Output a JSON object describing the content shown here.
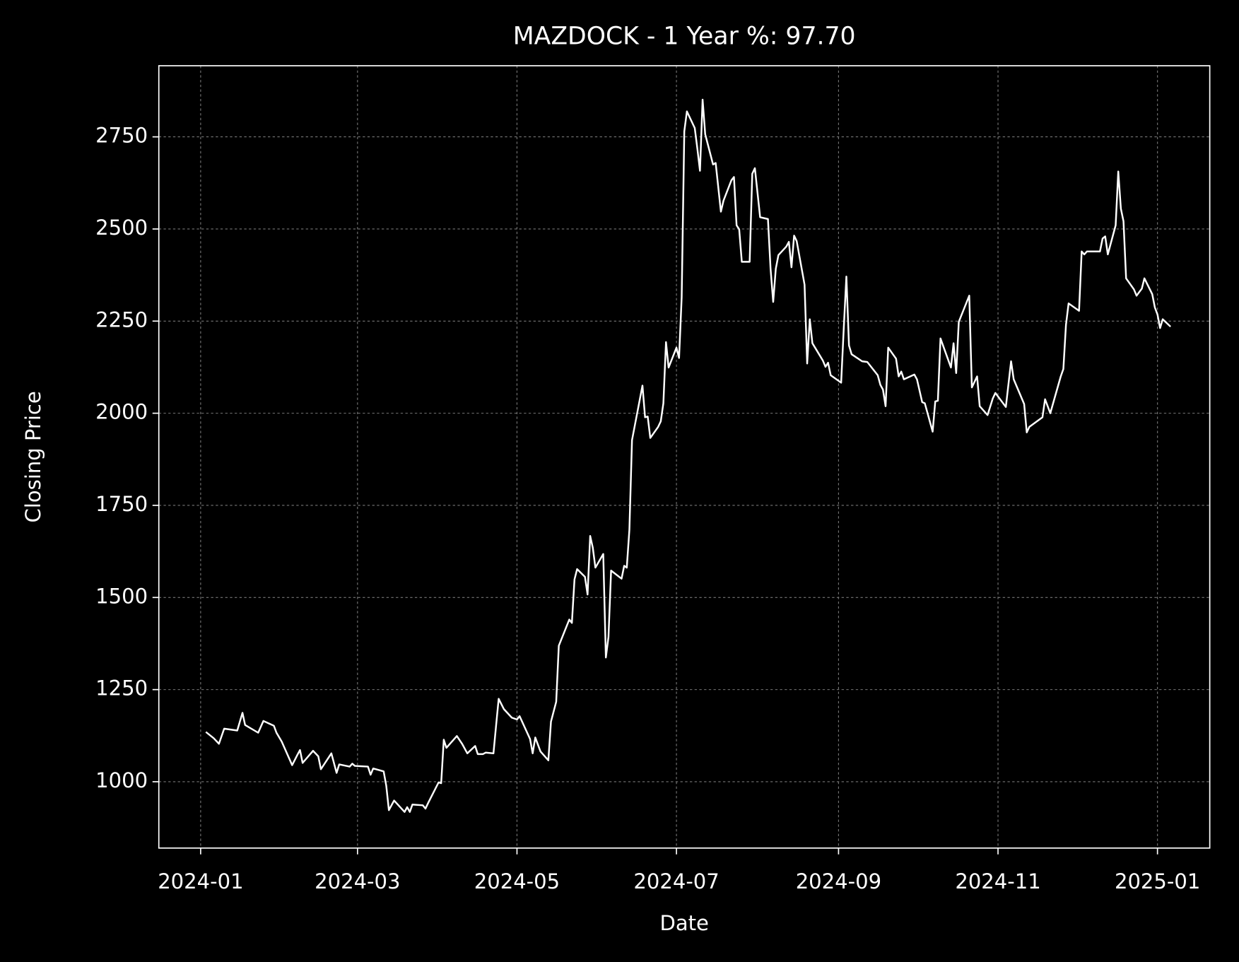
{
  "chart_data": {
    "type": "line",
    "title": "MAZDOCK - 1 Year %: 97.70",
    "xlabel": "Date",
    "ylabel": "Closing Price",
    "color": "#ffffff",
    "grid": true,
    "x": [
      "2024-01-03",
      "2024-01-06",
      "2024-01-08",
      "2024-01-10",
      "2024-01-15",
      "2024-01-17",
      "2024-01-18",
      "2024-01-23",
      "2024-01-25",
      "2024-01-29",
      "2024-01-30",
      "2024-02-01",
      "2024-02-05",
      "2024-02-07",
      "2024-02-08",
      "2024-02-09",
      "2024-02-13",
      "2024-02-15",
      "2024-02-16",
      "2024-02-20",
      "2024-02-22",
      "2024-02-23",
      "2024-02-27",
      "2024-02-28",
      "2024-02-29",
      "2024-03-05",
      "2024-03-06",
      "2024-03-07",
      "2024-03-11",
      "2024-03-12",
      "2024-03-13",
      "2024-03-15",
      "2024-03-19",
      "2024-03-20",
      "2024-03-21",
      "2024-03-22",
      "2024-03-26",
      "2024-03-27",
      "2024-03-28",
      "2024-04-01",
      "2024-04-02",
      "2024-04-03",
      "2024-04-04",
      "2024-04-08",
      "2024-04-10",
      "2024-04-12",
      "2024-04-15",
      "2024-04-16",
      "2024-04-18",
      "2024-04-19",
      "2024-04-22",
      "2024-04-23",
      "2024-04-24",
      "2024-04-26",
      "2024-04-29",
      "2024-05-01",
      "2024-05-02",
      "2024-05-06",
      "2024-05-07",
      "2024-05-08",
      "2024-05-10",
      "2024-05-13",
      "2024-05-14",
      "2024-05-16",
      "2024-05-17",
      "2024-05-21",
      "2024-05-22",
      "2024-05-23",
      "2024-05-24",
      "2024-05-27",
      "2024-05-28",
      "2024-05-29",
      "2024-05-30",
      "2024-05-31",
      "2024-06-03",
      "2024-06-04",
      "2024-06-05",
      "2024-06-06",
      "2024-06-10",
      "2024-06-11",
      "2024-06-12",
      "2024-06-13",
      "2024-06-14",
      "2024-06-18",
      "2024-06-19",
      "2024-06-20",
      "2024-06-21",
      "2024-06-24",
      "2024-06-25",
      "2024-06-26",
      "2024-06-27",
      "2024-06-28",
      "2024-07-01",
      "2024-07-02",
      "2024-07-03",
      "2024-07-04",
      "2024-07-05",
      "2024-07-08",
      "2024-07-09",
      "2024-07-10",
      "2024-07-11",
      "2024-07-12",
      "2024-07-15",
      "2024-07-16",
      "2024-07-18",
      "2024-07-19",
      "2024-07-22",
      "2024-07-23",
      "2024-07-24",
      "2024-07-25",
      "2024-07-26",
      "2024-07-29",
      "2024-07-30",
      "2024-07-31",
      "2024-08-02",
      "2024-08-05",
      "2024-08-06",
      "2024-08-07",
      "2024-08-08",
      "2024-08-09",
      "2024-08-12",
      "2024-08-13",
      "2024-08-14",
      "2024-08-15",
      "2024-08-16",
      "2024-08-19",
      "2024-08-20",
      "2024-08-21",
      "2024-08-22",
      "2024-08-26",
      "2024-08-27",
      "2024-08-28",
      "2024-08-29",
      "2024-09-02",
      "2024-09-03",
      "2024-09-04",
      "2024-09-05",
      "2024-09-06",
      "2024-09-10",
      "2024-09-12",
      "2024-09-16",
      "2024-09-17",
      "2024-09-18",
      "2024-09-19",
      "2024-09-20",
      "2024-09-23",
      "2024-09-24",
      "2024-09-25",
      "2024-09-26",
      "2024-09-30",
      "2024-10-01",
      "2024-10-03",
      "2024-10-04",
      "2024-10-07",
      "2024-10-08",
      "2024-10-09",
      "2024-10-10",
      "2024-10-14",
      "2024-10-15",
      "2024-10-16",
      "2024-10-17",
      "2024-10-21",
      "2024-10-22",
      "2024-10-24",
      "2024-10-25",
      "2024-10-28",
      "2024-10-30",
      "2024-10-31",
      "2024-11-04",
      "2024-11-06",
      "2024-11-07",
      "2024-11-11",
      "2024-11-12",
      "2024-11-13",
      "2024-11-18",
      "2024-11-19",
      "2024-11-21",
      "2024-11-25",
      "2024-11-26",
      "2024-11-27",
      "2024-11-28",
      "2024-12-02",
      "2024-12-03",
      "2024-12-04",
      "2024-12-05",
      "2024-12-10",
      "2024-12-11",
      "2024-12-12",
      "2024-12-13",
      "2024-12-16",
      "2024-12-17",
      "2024-12-18",
      "2024-12-19",
      "2024-12-20",
      "2024-12-23",
      "2024-12-24",
      "2024-12-26",
      "2024-12-27",
      "2024-12-30",
      "2024-12-31",
      "2025-01-01",
      "2025-01-02",
      "2025-01-03",
      "2025-01-06"
    ],
    "values": [
      1135,
      1118,
      1103,
      1144,
      1139,
      1187,
      1154,
      1133,
      1165,
      1152,
      1133,
      1109,
      1045,
      1073,
      1086,
      1051,
      1084,
      1069,
      1034,
      1077,
      1024,
      1047,
      1041,
      1049,
      1043,
      1041,
      1019,
      1036,
      1028,
      989,
      923,
      949,
      918,
      931,
      918,
      938,
      936,
      927,
      942,
      998,
      996,
      1114,
      1092,
      1124,
      1103,
      1077,
      1097,
      1075,
      1075,
      1079,
      1077,
      1152,
      1225,
      1197,
      1174,
      1169,
      1178,
      1116,
      1077,
      1120,
      1082,
      1058,
      1163,
      1217,
      1369,
      1440,
      1431,
      1549,
      1577,
      1556,
      1508,
      1667,
      1635,
      1581,
      1618,
      1337,
      1393,
      1573,
      1551,
      1586,
      1581,
      1684,
      1927,
      2075,
      1989,
      1991,
      1933,
      1963,
      1978,
      2027,
      2193,
      2124,
      2178,
      2150,
      2315,
      2765,
      2819,
      2774,
      2718,
      2658,
      2851,
      2757,
      2675,
      2679,
      2547,
      2577,
      2632,
      2641,
      2510,
      2499,
      2411,
      2411,
      2650,
      2665,
      2532,
      2527,
      2392,
      2302,
      2392,
      2429,
      2452,
      2465,
      2396,
      2482,
      2467,
      2349,
      2135,
      2255,
      2190,
      2143,
      2126,
      2137,
      2103,
      2083,
      2231,
      2371,
      2184,
      2160,
      2141,
      2139,
      2103,
      2077,
      2064,
      2019,
      2178,
      2148,
      2100,
      2113,
      2092,
      2105,
      2092,
      2030,
      2027,
      1950,
      2032,
      2034,
      2203,
      2124,
      2190,
      2109,
      2248,
      2319,
      2070,
      2100,
      2019,
      1995,
      2040,
      2055,
      2017,
      2141,
      2092,
      2025,
      1948,
      1963,
      1989,
      2038,
      2000,
      2100,
      2120,
      2240,
      2298,
      2278,
      2439,
      2431,
      2439,
      2439,
      2474,
      2480,
      2431,
      2510,
      2656,
      2555,
      2521,
      2366,
      2336,
      2319,
      2338,
      2366,
      2323,
      2287,
      2268,
      2231,
      2255,
      2235
    ],
    "xlim": [
      "2023-12-16",
      "2025-01-21"
    ],
    "xticks": [
      {
        "value": "2024-01-01",
        "label": "2024-01"
      },
      {
        "value": "2024-03-01",
        "label": "2024-03"
      },
      {
        "value": "2024-05-01",
        "label": "2024-05"
      },
      {
        "value": "2024-07-01",
        "label": "2024-07"
      },
      {
        "value": "2024-09-01",
        "label": "2024-09"
      },
      {
        "value": "2024-11-01",
        "label": "2024-11"
      },
      {
        "value": "2025-01-01",
        "label": "2025-01"
      }
    ],
    "ylim": [
      820,
      2943
    ],
    "yticks": [
      1000,
      1250,
      1500,
      1750,
      2000,
      2250,
      2500,
      2750
    ]
  }
}
